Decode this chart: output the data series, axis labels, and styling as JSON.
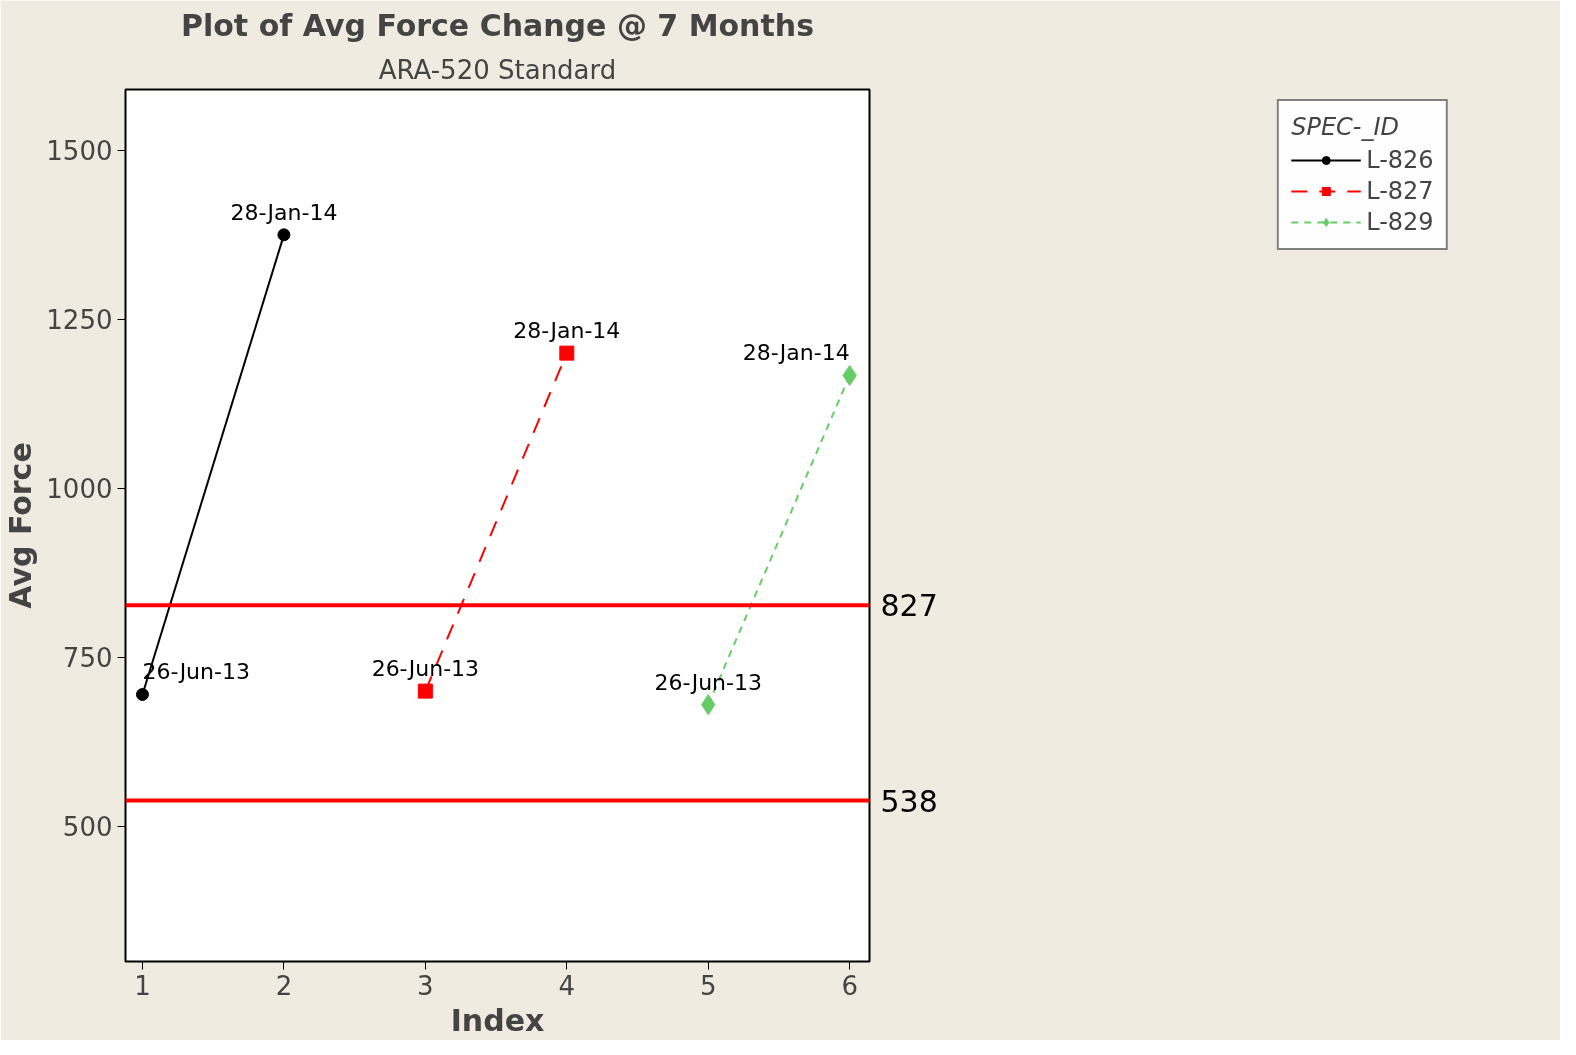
{
  "chart_data": {
    "type": "line",
    "title": "Plot of Avg Force Change @ 7 Months",
    "subtitle": "ARA-520 Standard",
    "xlabel": "Index",
    "ylabel": "Avg Force",
    "legend_title": "SPEC-_ID",
    "series": [
      {
        "name": "L-826",
        "color": "#000000",
        "x": [
          1,
          2
        ],
        "values": [
          695,
          1375
        ],
        "marker": "circle",
        "line_style": "solid"
      },
      {
        "name": "L-827",
        "color": "#ff0000",
        "x": [
          3,
          4
        ],
        "values": [
          700,
          1200
        ],
        "marker": "square",
        "line_style": "dashed"
      },
      {
        "name": "L-829",
        "color": "#66cc66",
        "x": [
          5,
          6
        ],
        "values": [
          680,
          1167
        ],
        "marker": "diamond",
        "line_style": "dotted"
      }
    ],
    "annotations": [
      {
        "text": "26-Jun-13",
        "x": 1,
        "y": 695
      },
      {
        "text": "28-Jan-14",
        "x": 2,
        "y": 1375
      },
      {
        "text": "26-Jun-13",
        "x": 3,
        "y": 700
      },
      {
        "text": "28-Jan-14",
        "x": 4,
        "y": 1200
      },
      {
        "text": "26-Jun-13",
        "x": 5,
        "y": 680
      },
      {
        "text": "28-Jan-14",
        "x": 6,
        "y": 1167
      }
    ],
    "ref_lines": [
      {
        "axis": "y",
        "value": 827,
        "label": "827",
        "color": "#ff0000"
      },
      {
        "axis": "y",
        "value": 538,
        "label": "538",
        "color": "#ff0000"
      }
    ],
    "xlim": [
      0.88,
      6.14
    ],
    "ylim": [
      300,
      1590
    ],
    "xticks": [
      1,
      2,
      3,
      4,
      5,
      6
    ],
    "yticks": [
      500,
      750,
      1000,
      1250,
      1500
    ],
    "grid": false,
    "legend": "top right"
  }
}
